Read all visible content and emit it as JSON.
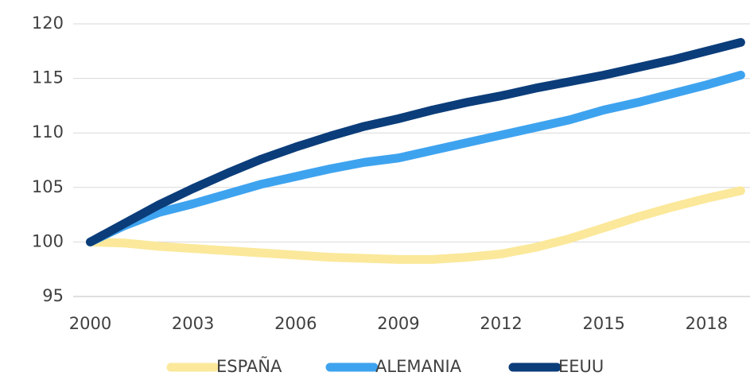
{
  "chart_data": {
    "type": "line",
    "x": [
      2000,
      2001,
      2002,
      2003,
      2004,
      2005,
      2006,
      2007,
      2008,
      2009,
      2010,
      2011,
      2012,
      2013,
      2014,
      2015,
      2016,
      2017,
      2018,
      2019
    ],
    "series": [
      {
        "name": "ESPAÑA",
        "color": "#fbe89a",
        "values": [
          100,
          99.9,
          99.6,
          99.4,
          99.2,
          99.0,
          98.8,
          98.6,
          98.5,
          98.4,
          98.4,
          98.6,
          98.9,
          99.5,
          100.3,
          101.3,
          102.3,
          103.2,
          104.0,
          104.7
        ]
      },
      {
        "name": "ALEMANIA",
        "color": "#3ea3ef",
        "values": [
          100,
          101.5,
          102.7,
          103.5,
          104.4,
          105.3,
          106.0,
          106.7,
          107.3,
          107.7,
          108.4,
          109.1,
          109.8,
          110.5,
          111.2,
          112.1,
          112.8,
          113.6,
          114.4,
          115.3
        ]
      },
      {
        "name": "EEUU",
        "color": "#0b3d7a",
        "values": [
          100,
          101.7,
          103.4,
          104.9,
          106.3,
          107.6,
          108.7,
          109.7,
          110.6,
          111.3,
          112.1,
          112.8,
          113.4,
          114.1,
          114.7,
          115.3,
          116.0,
          116.7,
          117.5,
          118.3
        ]
      }
    ],
    "xlim": [
      1999.5,
      2019.2
    ],
    "xticks": [
      2000,
      2003,
      2006,
      2009,
      2012,
      2015,
      2018
    ],
    "ylim": [
      95,
      120
    ],
    "yticks": [
      95,
      100,
      105,
      110,
      115,
      120
    ],
    "grid": true,
    "legend": "bottom"
  }
}
